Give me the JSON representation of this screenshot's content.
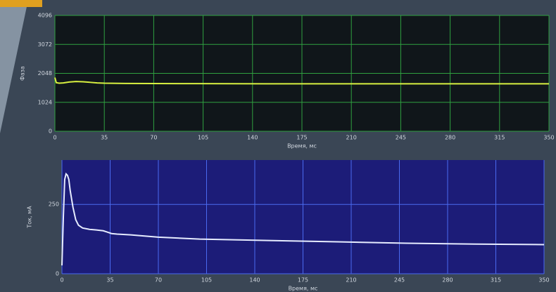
{
  "chart_data": [
    {
      "type": "line",
      "x_label": "Время, мс",
      "y_label": "Фаза",
      "x": [
        0,
        1,
        3,
        6,
        10,
        15,
        20,
        25,
        30,
        35,
        50,
        100,
        150,
        200,
        250,
        300,
        350
      ],
      "series": [
        {
          "color": "#d8f040",
          "values": [
            1900,
            1720,
            1700,
            1710,
            1740,
            1760,
            1750,
            1730,
            1710,
            1700,
            1690,
            1685,
            1680,
            1680,
            1678,
            1680,
            1680
          ]
        }
      ],
      "xlim": [
        0,
        350
      ],
      "xticks": [
        0,
        35,
        70,
        105,
        140,
        175,
        210,
        245,
        280,
        315,
        350
      ],
      "ylim": [
        0,
        4096
      ],
      "yticks": [
        0,
        1024,
        2048,
        3072,
        4096
      ],
      "grid": true
    },
    {
      "type": "line",
      "x_label": "Время, мс",
      "y_label": "Ток, мА",
      "x": [
        0,
        1,
        2,
        3,
        4,
        5,
        6,
        8,
        10,
        12,
        15,
        20,
        25,
        30,
        33,
        36,
        40,
        50,
        70,
        100,
        150,
        200,
        250,
        300,
        350
      ],
      "series": [
        {
          "color": "#e6ecff",
          "values": [
            30,
            200,
            340,
            360,
            355,
            340,
            300,
            240,
            195,
            175,
            165,
            160,
            158,
            155,
            150,
            145,
            143,
            140,
            132,
            125,
            120,
            115,
            110,
            107,
            105
          ]
        }
      ],
      "xlim": [
        0,
        350
      ],
      "xticks": [
        0,
        35,
        70,
        105,
        140,
        175,
        210,
        245,
        280,
        315,
        350
      ],
      "ylim": [
        0,
        410
      ],
      "yticks": [
        0,
        250
      ],
      "grid": true
    }
  ]
}
